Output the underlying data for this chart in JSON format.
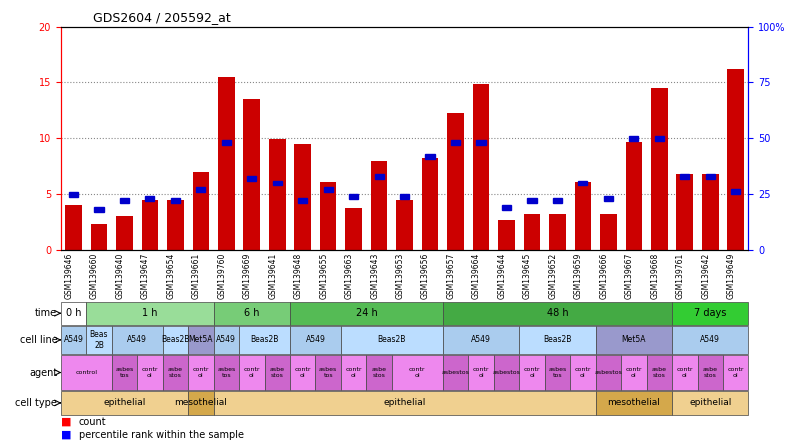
{
  "title": "GDS2604 / 205592_at",
  "samples": [
    "GSM139646",
    "GSM139660",
    "GSM139640",
    "GSM139647",
    "GSM139654",
    "GSM139661",
    "GSM139760",
    "GSM139669",
    "GSM139641",
    "GSM139648",
    "GSM139655",
    "GSM139663",
    "GSM139643",
    "GSM139653",
    "GSM139656",
    "GSM139657",
    "GSM139664",
    "GSM139644",
    "GSM139645",
    "GSM139652",
    "GSM139659",
    "GSM139666",
    "GSM139667",
    "GSM139668",
    "GSM139761",
    "GSM139642",
    "GSM139649"
  ],
  "counts": [
    4.0,
    2.3,
    3.0,
    4.5,
    4.5,
    7.0,
    15.5,
    13.5,
    9.9,
    9.5,
    6.1,
    3.8,
    8.0,
    4.5,
    8.2,
    12.3,
    14.9,
    2.7,
    3.2,
    3.2,
    6.1,
    3.2,
    9.7,
    14.5,
    6.8,
    6.8,
    16.2
  ],
  "percentiles": [
    25,
    18,
    22,
    23,
    22,
    27,
    48,
    32,
    30,
    22,
    27,
    24,
    33,
    24,
    42,
    48,
    48,
    19,
    22,
    22,
    30,
    23,
    50,
    50,
    33,
    33,
    26
  ],
  "time_groups": [
    {
      "label": "0 h",
      "start": 0,
      "end": 1,
      "color": "#ffffff"
    },
    {
      "label": "1 h",
      "start": 1,
      "end": 6,
      "color": "#99dd99"
    },
    {
      "label": "6 h",
      "start": 6,
      "end": 9,
      "color": "#77cc77"
    },
    {
      "label": "24 h",
      "start": 9,
      "end": 15,
      "color": "#55bb55"
    },
    {
      "label": "48 h",
      "start": 15,
      "end": 24,
      "color": "#44aa44"
    },
    {
      "label": "7 days",
      "start": 24,
      "end": 27,
      "color": "#33cc33"
    }
  ],
  "cell_line_groups": [
    {
      "label": "A549",
      "start": 0,
      "end": 1,
      "color": "#aaccee"
    },
    {
      "label": "Beas\n2B",
      "start": 1,
      "end": 2,
      "color": "#bbddff"
    },
    {
      "label": "A549",
      "start": 2,
      "end": 4,
      "color": "#aaccee"
    },
    {
      "label": "Beas2B",
      "start": 4,
      "end": 5,
      "color": "#bbddff"
    },
    {
      "label": "Met5A",
      "start": 5,
      "end": 6,
      "color": "#9999cc"
    },
    {
      "label": "A549",
      "start": 6,
      "end": 7,
      "color": "#aaccee"
    },
    {
      "label": "Beas2B",
      "start": 7,
      "end": 9,
      "color": "#bbddff"
    },
    {
      "label": "A549",
      "start": 9,
      "end": 11,
      "color": "#aaccee"
    },
    {
      "label": "Beas2B",
      "start": 11,
      "end": 15,
      "color": "#bbddff"
    },
    {
      "label": "A549",
      "start": 15,
      "end": 18,
      "color": "#aaccee"
    },
    {
      "label": "Beas2B",
      "start": 18,
      "end": 21,
      "color": "#bbddff"
    },
    {
      "label": "Met5A",
      "start": 21,
      "end": 24,
      "color": "#9999cc"
    },
    {
      "label": "A549",
      "start": 24,
      "end": 27,
      "color": "#aaccee"
    }
  ],
  "agent_groups": [
    {
      "label": "control",
      "start": 0,
      "end": 2,
      "color": "#ee88ee"
    },
    {
      "label": "asbes\ntos",
      "start": 2,
      "end": 3,
      "color": "#cc66cc"
    },
    {
      "label": "contr\nol",
      "start": 3,
      "end": 4,
      "color": "#ee88ee"
    },
    {
      "label": "asbe\nstos",
      "start": 4,
      "end": 5,
      "color": "#cc66cc"
    },
    {
      "label": "contr\nol",
      "start": 5,
      "end": 6,
      "color": "#ee88ee"
    },
    {
      "label": "asbes\ntos",
      "start": 6,
      "end": 7,
      "color": "#cc66cc"
    },
    {
      "label": "contr\nol",
      "start": 7,
      "end": 8,
      "color": "#ee88ee"
    },
    {
      "label": "asbe\nstos",
      "start": 8,
      "end": 9,
      "color": "#cc66cc"
    },
    {
      "label": "contr\nol",
      "start": 9,
      "end": 10,
      "color": "#ee88ee"
    },
    {
      "label": "asbes\ntos",
      "start": 10,
      "end": 11,
      "color": "#cc66cc"
    },
    {
      "label": "contr\nol",
      "start": 11,
      "end": 12,
      "color": "#ee88ee"
    },
    {
      "label": "asbe\nstos",
      "start": 12,
      "end": 13,
      "color": "#cc66cc"
    },
    {
      "label": "contr\nol",
      "start": 13,
      "end": 15,
      "color": "#ee88ee"
    },
    {
      "label": "asbestos",
      "start": 15,
      "end": 16,
      "color": "#cc66cc"
    },
    {
      "label": "contr\nol",
      "start": 16,
      "end": 17,
      "color": "#ee88ee"
    },
    {
      "label": "asbestos",
      "start": 17,
      "end": 18,
      "color": "#cc66cc"
    },
    {
      "label": "contr\nol",
      "start": 18,
      "end": 19,
      "color": "#ee88ee"
    },
    {
      "label": "asbes\ntos",
      "start": 19,
      "end": 20,
      "color": "#cc66cc"
    },
    {
      "label": "contr\nol",
      "start": 20,
      "end": 21,
      "color": "#ee88ee"
    },
    {
      "label": "asbestos",
      "start": 21,
      "end": 22,
      "color": "#cc66cc"
    },
    {
      "label": "contr\nol",
      "start": 22,
      "end": 23,
      "color": "#ee88ee"
    },
    {
      "label": "asbe\nstos",
      "start": 23,
      "end": 24,
      "color": "#cc66cc"
    },
    {
      "label": "contr\nol",
      "start": 24,
      "end": 25,
      "color": "#ee88ee"
    },
    {
      "label": "asbe\nstos",
      "start": 25,
      "end": 26,
      "color": "#cc66cc"
    },
    {
      "label": "contr\nol",
      "start": 26,
      "end": 27,
      "color": "#ee88ee"
    }
  ],
  "cell_type_groups": [
    {
      "label": "epithelial",
      "start": 0,
      "end": 5,
      "color": "#f0d090"
    },
    {
      "label": "mesothelial",
      "start": 5,
      "end": 6,
      "color": "#d4a84b"
    },
    {
      "label": "epithelial",
      "start": 6,
      "end": 21,
      "color": "#f0d090"
    },
    {
      "label": "mesothelial",
      "start": 21,
      "end": 24,
      "color": "#d4a84b"
    },
    {
      "label": "epithelial",
      "start": 24,
      "end": 27,
      "color": "#f0d090"
    }
  ],
  "bar_color": "#cc0000",
  "dot_color": "#0000cc",
  "left_yticks": [
    0,
    5,
    10,
    15,
    20
  ],
  "right_yticks": [
    0,
    25,
    50,
    75,
    100
  ]
}
